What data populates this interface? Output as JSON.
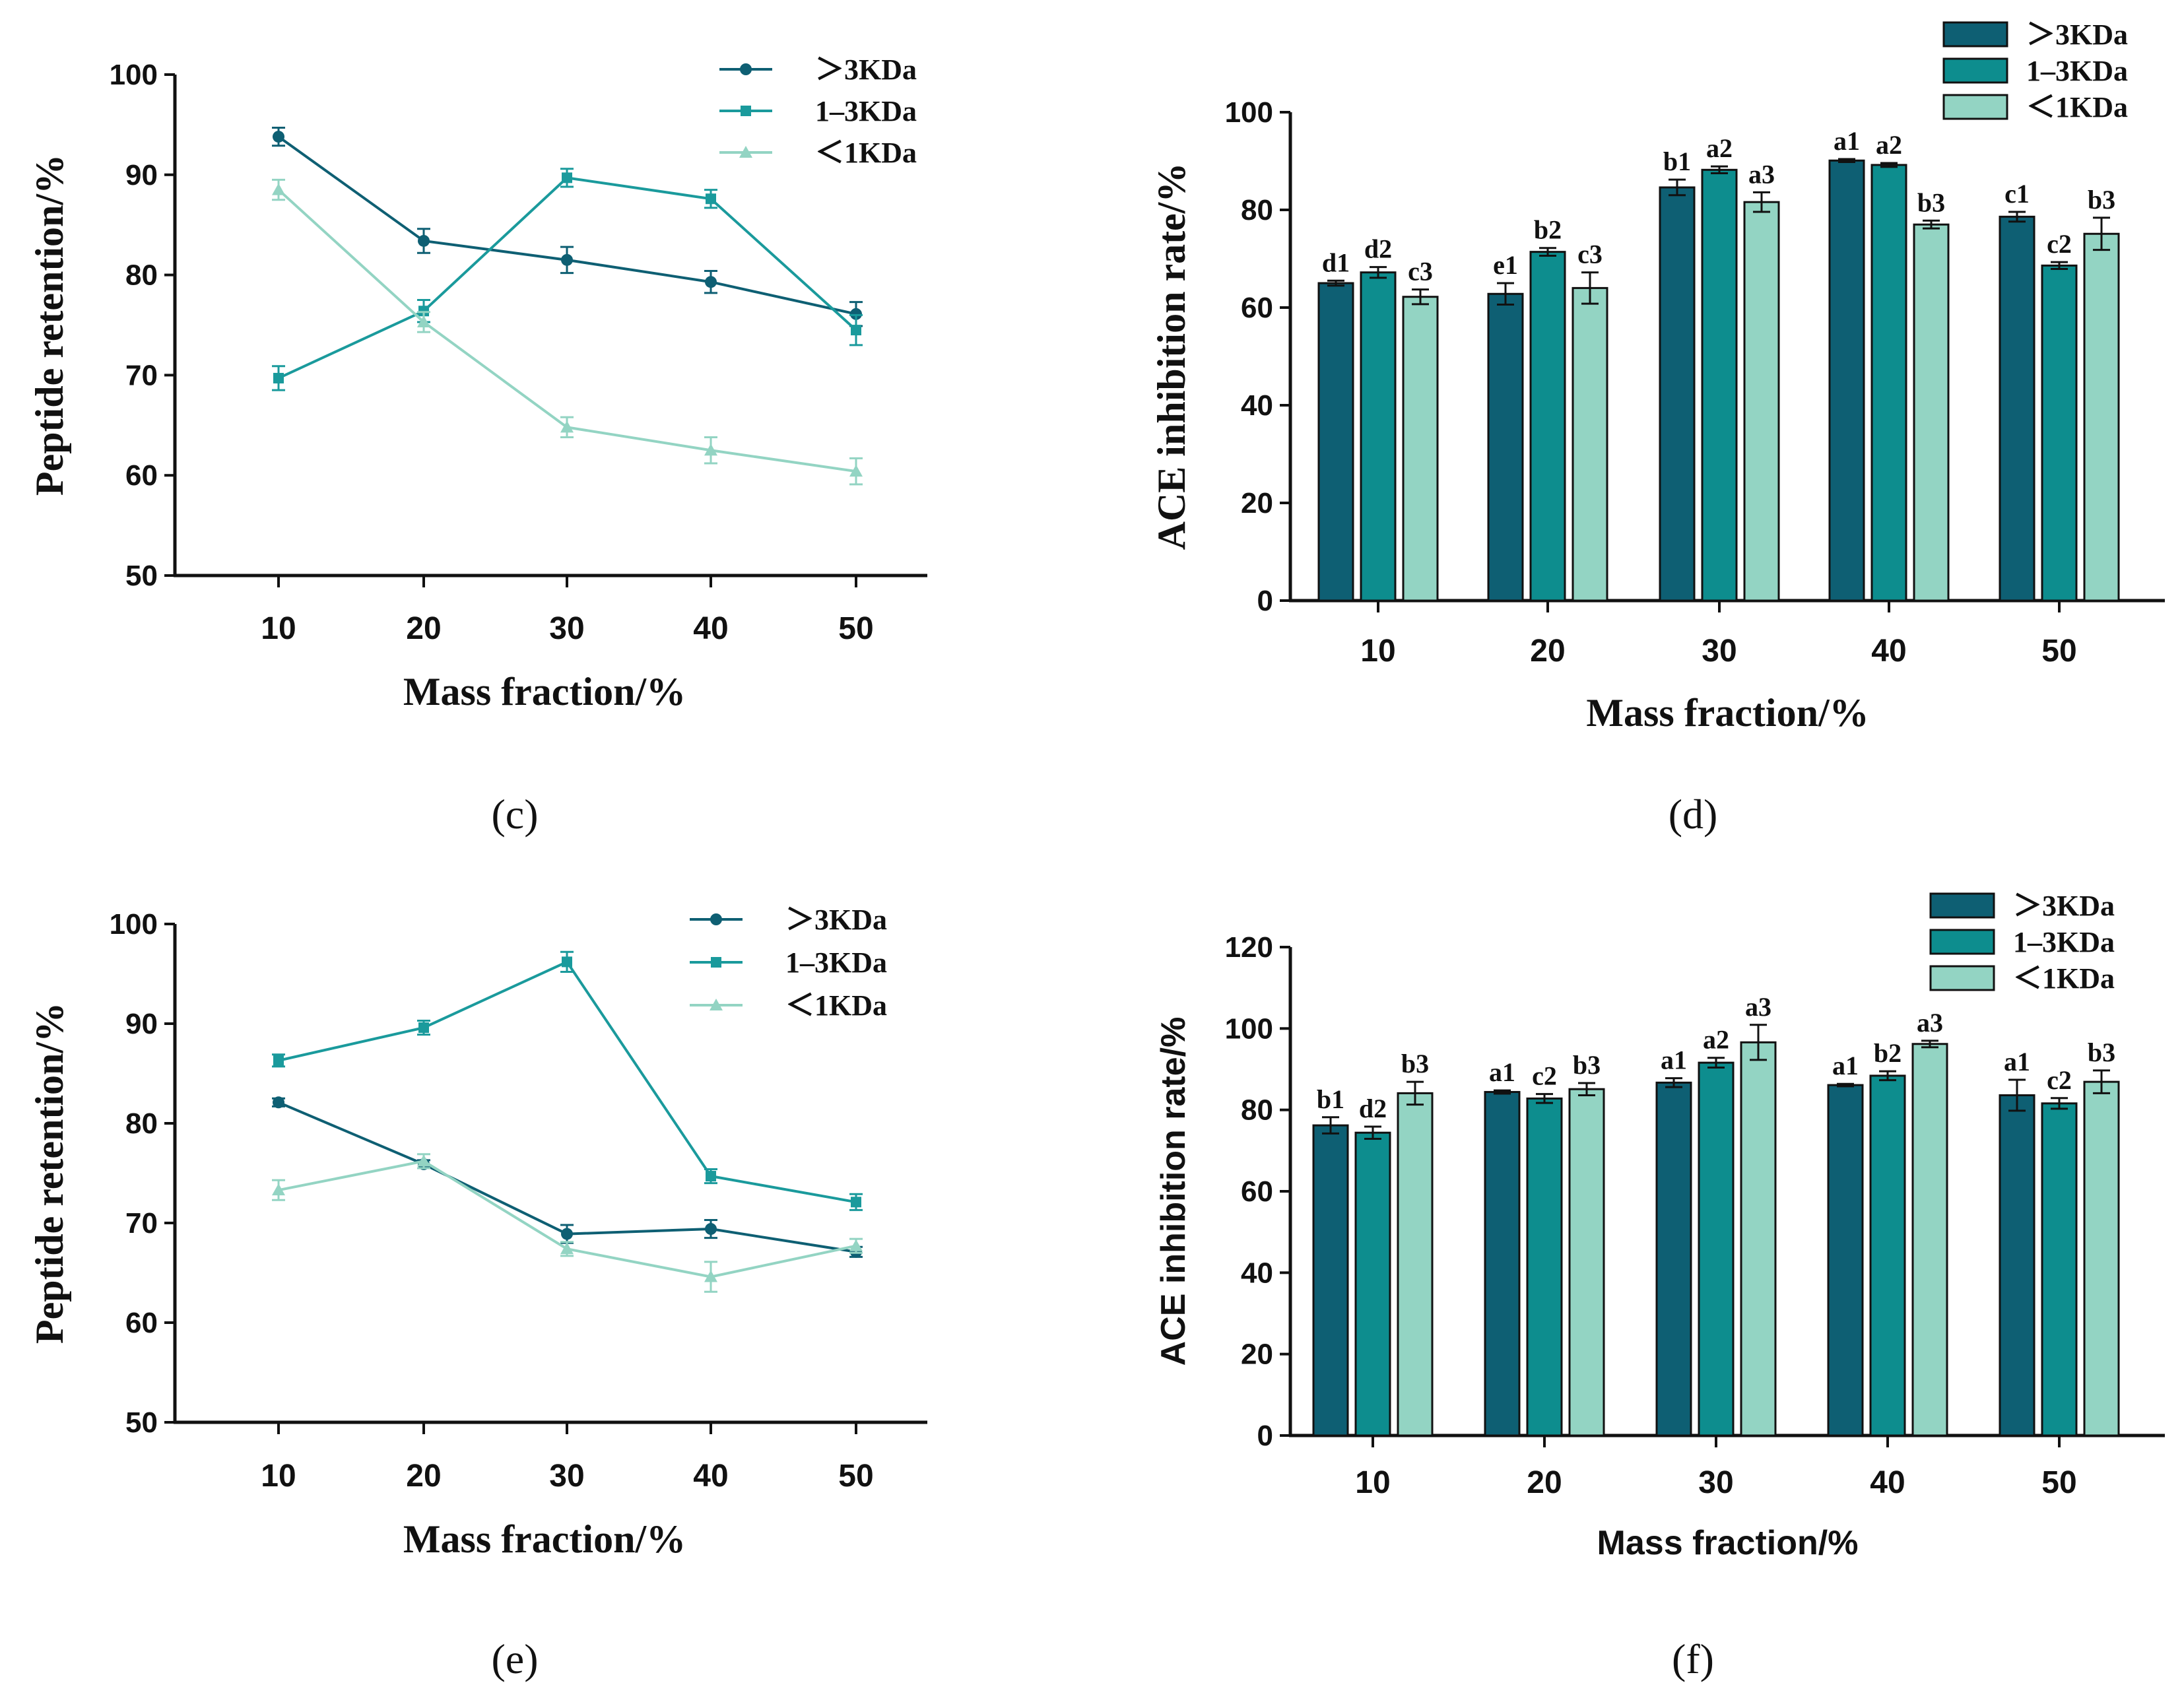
{
  "chart_data": [
    {
      "panel": "(c)",
      "type": "line",
      "xlabel": "Mass fraction/%",
      "ylabel": "Peptide retention/%",
      "x": [
        10,
        20,
        30,
        40,
        50
      ],
      "xtick_labels": [
        "10",
        "20",
        "30",
        "40",
        "50"
      ],
      "ylim": [
        50,
        100
      ],
      "yticks": [
        "50",
        "60",
        "70",
        "80",
        "90",
        "100"
      ],
      "legend_position": "top-right",
      "series": [
        {
          "name": "＞3KDa",
          "color": "#0e5f73",
          "marker": "circle",
          "values": [
            93.8,
            83.4,
            81.5,
            79.3,
            76.1
          ],
          "errors": [
            0.9,
            1.2,
            1.3,
            1.1,
            1.2
          ]
        },
        {
          "name": "1–3KDa",
          "color": "#1a9a9c",
          "marker": "square",
          "values": [
            69.7,
            76.4,
            89.7,
            87.6,
            74.5
          ],
          "errors": [
            1.2,
            1.1,
            0.9,
            0.9,
            1.5
          ]
        },
        {
          "name": "＜1KDa",
          "color": "#93d4c3",
          "marker": "triangle",
          "values": [
            88.5,
            75.3,
            64.8,
            62.5,
            60.4
          ],
          "errors": [
            1.0,
            1.0,
            1.0,
            1.3,
            1.3
          ]
        }
      ]
    },
    {
      "panel": "(d)",
      "type": "bar",
      "xlabel": "Mass fraction/%",
      "ylabel": "ACE inhibition rate/%",
      "categories": [
        "10",
        "20",
        "30",
        "40",
        "50"
      ],
      "ylim": [
        0,
        100
      ],
      "yticks": [
        "0",
        "20",
        "40",
        "60",
        "80",
        "100"
      ],
      "legend_position": "top-right",
      "series": [
        {
          "name": "＞3KDa",
          "color": "#0e5f73",
          "values": [
            65.0,
            62.8,
            84.6,
            90.1,
            78.6
          ],
          "errors": [
            0.5,
            2.2,
            1.6,
            0.3,
            1.0
          ],
          "labels": [
            "d1",
            "e1",
            "b1",
            "a1",
            "c1"
          ]
        },
        {
          "name": "1–3KDa",
          "color": "#0d8d8e",
          "values": [
            67.2,
            71.4,
            88.2,
            89.2,
            68.6
          ],
          "errors": [
            1.1,
            0.8,
            0.7,
            0.4,
            0.7
          ],
          "labels": [
            "d2",
            "b2",
            "a2",
            "a2",
            "c2"
          ]
        },
        {
          "name": "＜1KDa",
          "color": "#93d4c3",
          "values": [
            62.2,
            64.0,
            81.6,
            77.0,
            75.1
          ],
          "errors": [
            1.5,
            3.2,
            2.0,
            0.8,
            3.3
          ],
          "labels": [
            "c3",
            "c3",
            "a3",
            "b3",
            "b3"
          ]
        }
      ]
    },
    {
      "panel": "(e)",
      "type": "line",
      "xlabel": "Mass fraction/%",
      "ylabel": "Peptide retention/%",
      "x": [
        10,
        20,
        30,
        40,
        50
      ],
      "xtick_labels": [
        "10",
        "20",
        "30",
        "40",
        "50"
      ],
      "ylim": [
        50,
        100
      ],
      "yticks": [
        "50",
        "60",
        "70",
        "80",
        "90",
        "100"
      ],
      "legend_position": "top-right",
      "series": [
        {
          "name": "＞3KDa",
          "color": "#0e5f73",
          "marker": "circle",
          "values": [
            82.1,
            75.9,
            68.9,
            69.4,
            67.1
          ],
          "errors": [
            0.4,
            0.4,
            0.9,
            0.9,
            0.5
          ]
        },
        {
          "name": "1–3KDa",
          "color": "#1a9a9c",
          "marker": "square",
          "values": [
            86.3,
            89.6,
            96.2,
            74.7,
            72.1
          ],
          "errors": [
            0.6,
            0.7,
            1.0,
            0.7,
            0.8
          ]
        },
        {
          "name": "＜1KDa",
          "color": "#93d4c3",
          "marker": "triangle",
          "values": [
            73.3,
            76.2,
            67.4,
            64.6,
            67.7
          ],
          "errors": [
            1.0,
            0.7,
            0.7,
            1.5,
            0.7
          ]
        }
      ]
    },
    {
      "panel": "(f)",
      "type": "bar",
      "xlabel": "Mass fraction/%",
      "ylabel": "ACE inhibition rate/%",
      "categories": [
        "10",
        "20",
        "30",
        "40",
        "50"
      ],
      "ylim": [
        0,
        120
      ],
      "yticks": [
        "0",
        "20",
        "40",
        "60",
        "80",
        "100",
        "120"
      ],
      "legend_position": "top-right",
      "series": [
        {
          "name": "＞3KDa",
          "color": "#0e5f73",
          "values": [
            76.2,
            84.4,
            86.7,
            86.1,
            83.6
          ],
          "errors": [
            2.0,
            0.4,
            1.1,
            0.3,
            3.8
          ],
          "labels": [
            "b1",
            "a1",
            "a1",
            "a1",
            "a1"
          ]
        },
        {
          "name": "1–3KDa",
          "color": "#0d8d8e",
          "values": [
            74.4,
            82.8,
            91.6,
            88.4,
            81.6
          ],
          "errors": [
            1.5,
            1.1,
            1.2,
            1.1,
            1.3
          ],
          "labels": [
            "d2",
            "c2",
            "a2",
            "b2",
            "c2"
          ]
        },
        {
          "name": "＜1KDa",
          "color": "#93d4c3",
          "values": [
            84.1,
            85.1,
            96.6,
            96.2,
            86.9
          ],
          "errors": [
            2.8,
            1.5,
            4.3,
            0.8,
            2.8
          ],
          "labels": [
            "b3",
            "b3",
            "a3",
            "a3",
            "b3"
          ]
        }
      ]
    }
  ]
}
